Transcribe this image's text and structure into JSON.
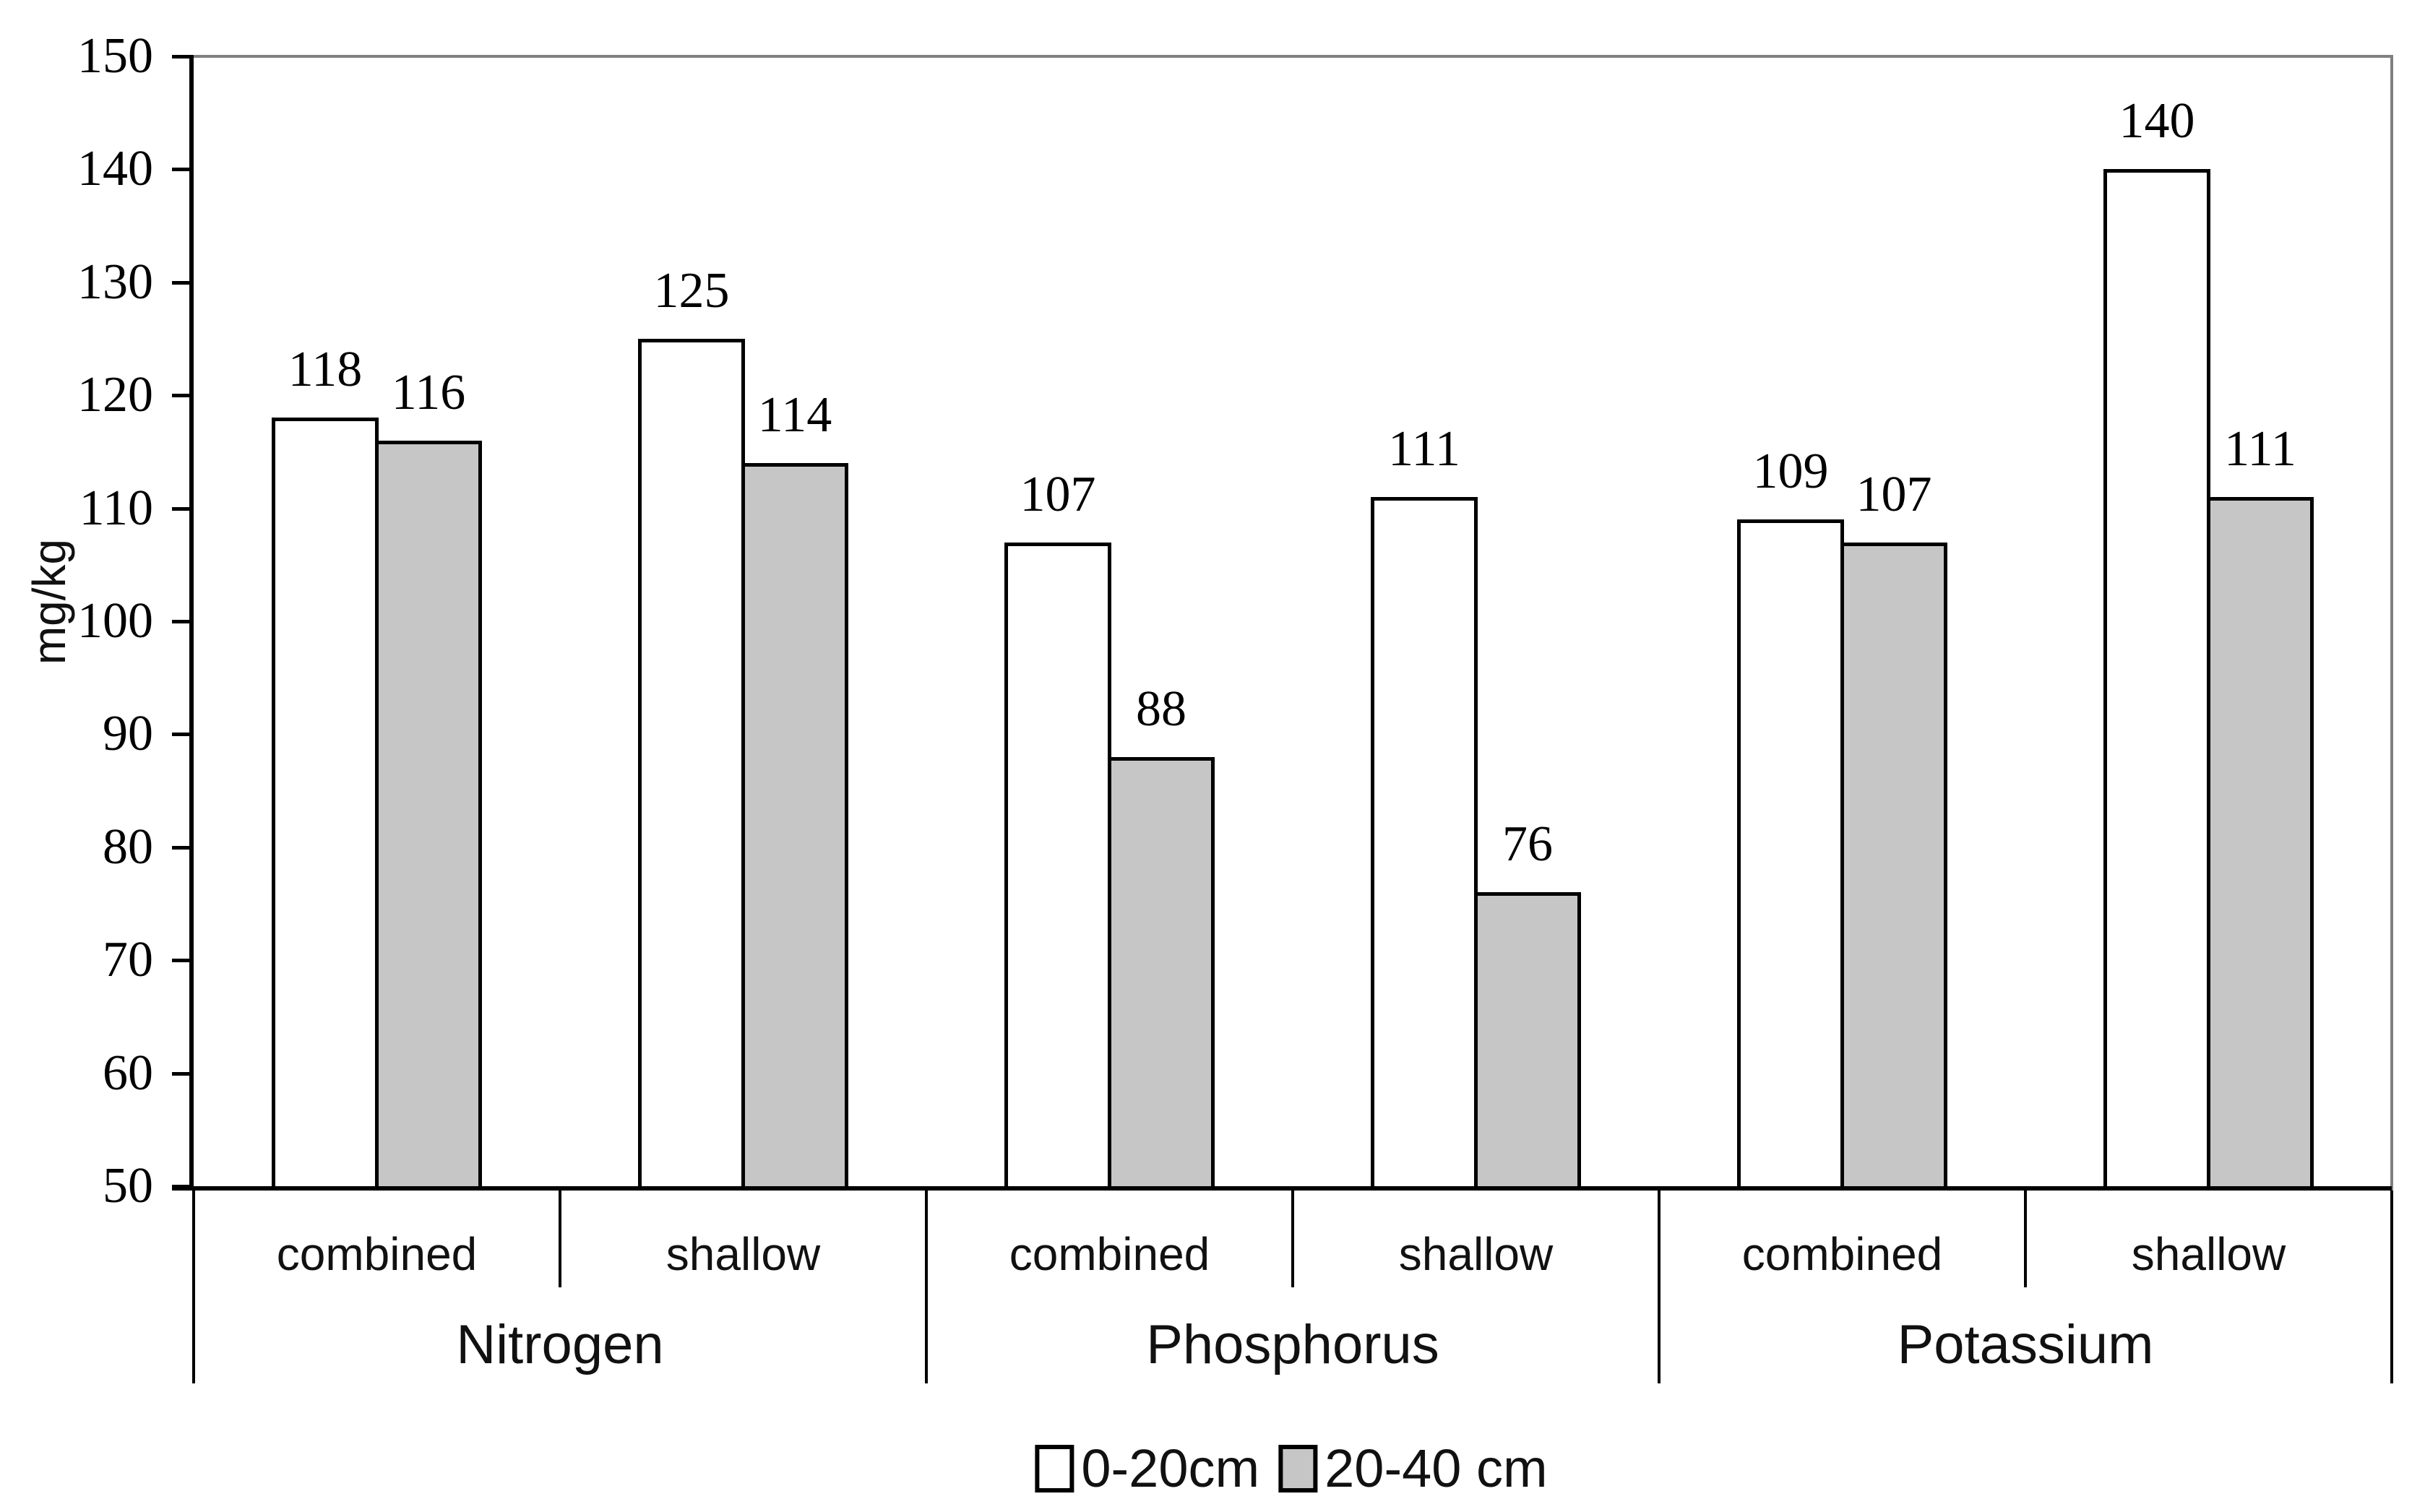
{
  "chart_data": {
    "type": "bar",
    "title": "",
    "xlabel": "",
    "ylabel": "mg/kg",
    "ylim": [
      50,
      150
    ],
    "yticks": [
      50,
      60,
      70,
      80,
      90,
      100,
      110,
      120,
      130,
      140,
      150
    ],
    "grid": false,
    "legend_position": "bottom",
    "group_labels": [
      "Nitrogen",
      "Phosphorus",
      "Potassium"
    ],
    "categories": [
      "combined",
      "shallow",
      "combined",
      "shallow",
      "combined",
      "shallow"
    ],
    "series": [
      {
        "name": "0-20cm",
        "fill": "#ffffff",
        "values": [
          118,
          125,
          107,
          111,
          109,
          140
        ]
      },
      {
        "name": "20-40 cm",
        "fill": "#c6c6c6",
        "values": [
          116,
          114,
          88,
          76,
          107,
          111
        ]
      }
    ]
  },
  "colors": {
    "background": "#ffffff",
    "bar_border": "#000000",
    "axis": "#000000",
    "frame": "#808080",
    "text": "#000000"
  }
}
